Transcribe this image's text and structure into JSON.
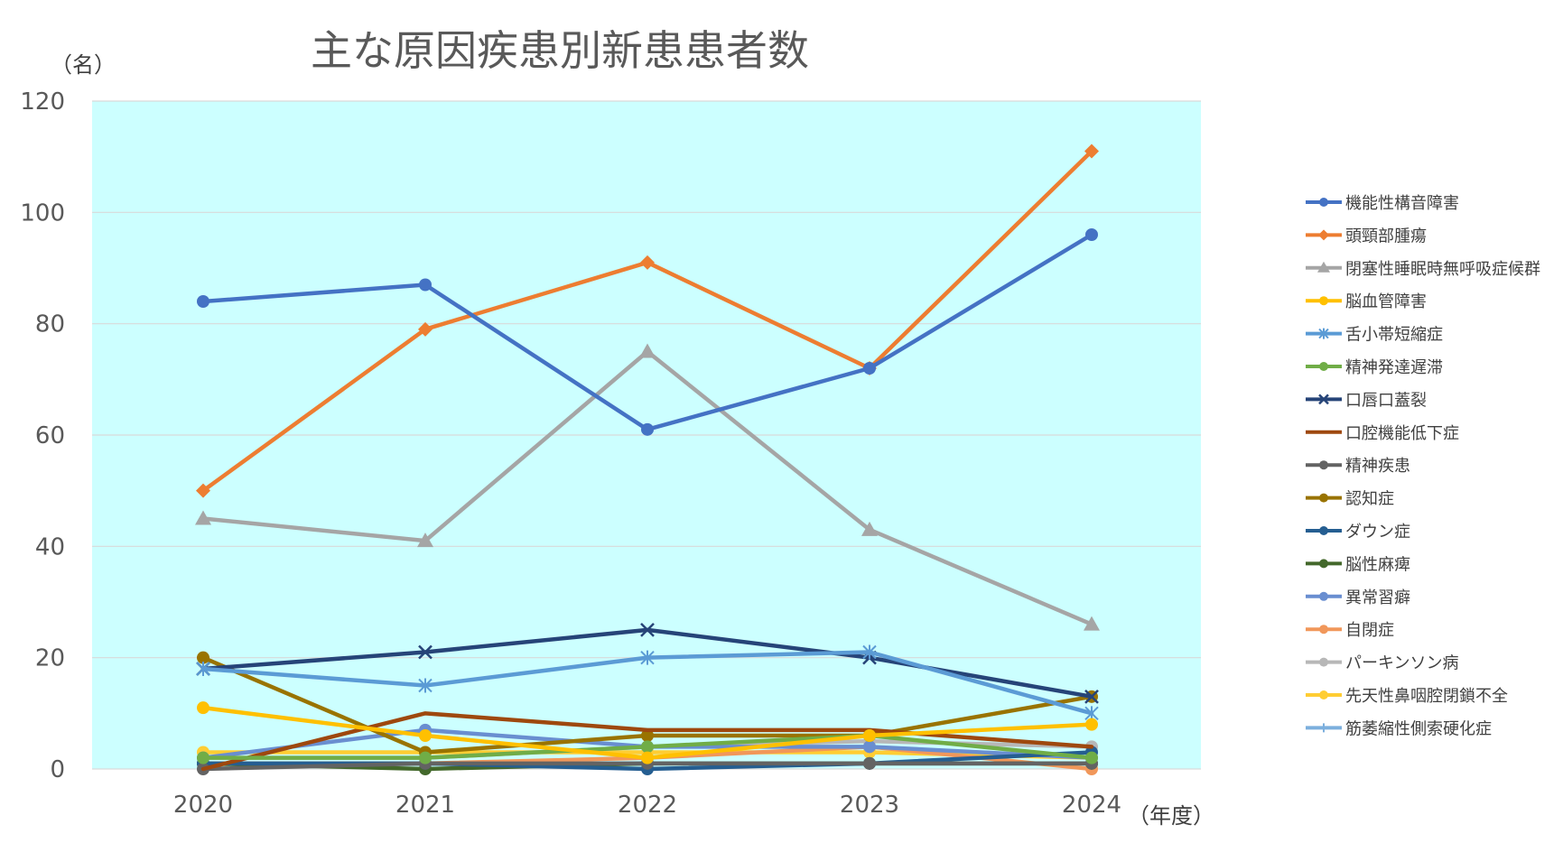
{
  "chart_data": {
    "type": "line",
    "title": "主な原因疾患別新患患者数",
    "ylabel": "（名）",
    "xlabel": "（年度）",
    "categories": [
      "2020",
      "2021",
      "2022",
      "2023",
      "2024"
    ],
    "ylim": [
      0,
      120
    ],
    "yticks": [
      0,
      20,
      40,
      60,
      80,
      100,
      120
    ],
    "grid": true,
    "legend_position": "right",
    "plot_background": "#ccffff",
    "series": [
      {
        "name": "機能性構音障害",
        "color": "#4472c4",
        "marker": "circle",
        "values": [
          84,
          87,
          61,
          72,
          96
        ]
      },
      {
        "name": "頭頸部腫瘍",
        "color": "#ed7d31",
        "marker": "diamond",
        "values": [
          50,
          79,
          91,
          72,
          111
        ]
      },
      {
        "name": "閉塞性睡眠時無呼吸症候群",
        "color": "#a5a5a5",
        "marker": "triangle",
        "values": [
          45,
          41,
          75,
          43,
          26
        ]
      },
      {
        "name": "脳血管障害",
        "color": "#ffc000",
        "marker": "circle",
        "values": [
          11,
          6,
          2,
          6,
          8
        ]
      },
      {
        "name": "舌小帯短縮症",
        "color": "#5b9bd5",
        "marker": "star",
        "values": [
          18,
          15,
          20,
          21,
          10
        ]
      },
      {
        "name": "精神発達遅滞",
        "color": "#70ad47",
        "marker": "circle",
        "values": [
          2,
          2,
          4,
          6,
          2
        ]
      },
      {
        "name": "口唇口蓋裂",
        "color": "#264478",
        "marker": "x",
        "values": [
          18,
          21,
          25,
          20,
          13
        ]
      },
      {
        "name": "口腔機能低下症",
        "color": "#9e480e",
        "marker": "none",
        "values": [
          0,
          10,
          7,
          7,
          4
        ]
      },
      {
        "name": "精神疾患",
        "color": "#636363",
        "marker": "circle",
        "values": [
          0,
          1,
          1,
          1,
          1
        ]
      },
      {
        "name": "認知症",
        "color": "#997300",
        "marker": "circle",
        "values": [
          20,
          3,
          6,
          6,
          13
        ]
      },
      {
        "name": "ダウン症",
        "color": "#255e91",
        "marker": "circle",
        "values": [
          1,
          1,
          0,
          1,
          3
        ]
      },
      {
        "name": "脳性麻痺",
        "color": "#43682b",
        "marker": "circle",
        "values": [
          1,
          0,
          1,
          1,
          1
        ]
      },
      {
        "name": "異常習癖",
        "color": "#698ed0",
        "marker": "circle",
        "values": [
          2,
          7,
          4,
          4,
          2
        ]
      },
      {
        "name": "自閉症",
        "color": "#f1975a",
        "marker": "circle",
        "values": [
          1,
          1,
          2,
          4,
          0
        ]
      },
      {
        "name": "パーキンソン病",
        "color": "#b7b7b7",
        "marker": "circle",
        "values": [
          2,
          2,
          4,
          5,
          4
        ]
      },
      {
        "name": "先天性鼻咽腔閉鎖不全",
        "color": "#ffcd33",
        "marker": "circle",
        "values": [
          3,
          3,
          3,
          3,
          2
        ]
      },
      {
        "name": "筋萎縮性側索硬化症",
        "color": "#7cafdd",
        "marker": "plus",
        "values": [
          1,
          1,
          1,
          1,
          1
        ]
      }
    ]
  }
}
